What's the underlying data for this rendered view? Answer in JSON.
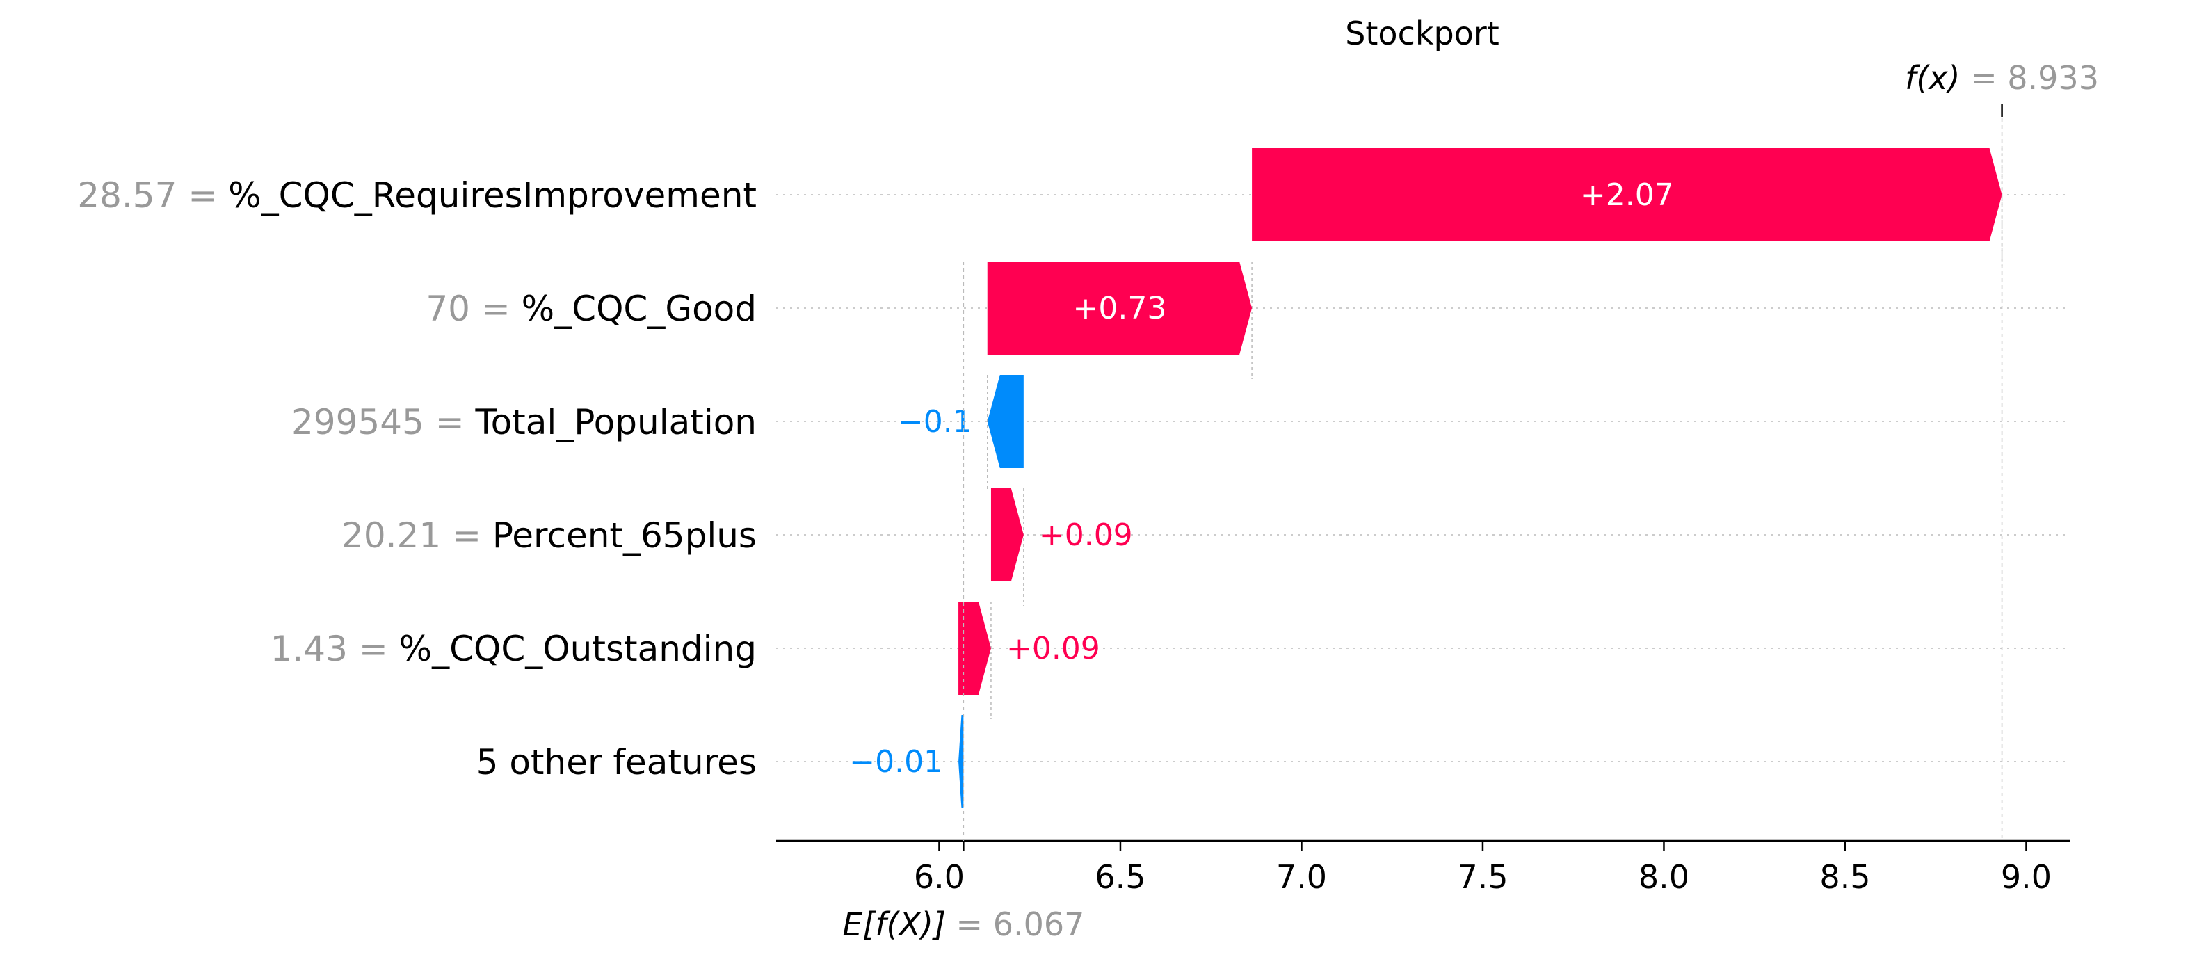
{
  "chart_data": {
    "type": "waterfall",
    "title": "Stockport",
    "f_x": {
      "label": "f(x)",
      "value": "8.933",
      "x": 8.933
    },
    "expected": {
      "label": "E[f(X)]",
      "value": "6.067",
      "x": 6.067
    },
    "xlim": [
      5.55,
      9.12
    ],
    "x_ticks": [
      6.0,
      6.5,
      7.0,
      7.5,
      8.0,
      8.5,
      9.0
    ],
    "x_tick_labels": [
      "6.0",
      "6.5",
      "7.0",
      "7.5",
      "8.0",
      "8.5",
      "9.0"
    ],
    "features": [
      {
        "value_text": "28.57",
        "name": "%_CQC_RequiresImprovement",
        "contribution": 2.07,
        "label": "+2.07",
        "start": 6.863,
        "end": 8.933
      },
      {
        "value_text": "70",
        "name": "%_CQC_Good",
        "contribution": 0.73,
        "label": "+0.73",
        "start": 6.133,
        "end": 6.863
      },
      {
        "value_text": "299545",
        "name": "Total_Population",
        "contribution": -0.1,
        "label": "−0.1",
        "start": 6.233,
        "end": 6.133
      },
      {
        "value_text": "20.21",
        "name": "Percent_65plus",
        "contribution": 0.09,
        "label": "+0.09",
        "start": 6.143,
        "end": 6.233
      },
      {
        "value_text": "1.43",
        "name": "%_CQC_Outstanding",
        "contribution": 0.09,
        "label": "+0.09",
        "start": 6.053,
        "end": 6.143
      },
      {
        "value_text": "",
        "name": "5 other features",
        "contribution": -0.01,
        "label": "−0.01",
        "start": 6.067,
        "end": 6.053
      }
    ],
    "colors": {
      "positive": "#ff0051",
      "negative": "#008bfb",
      "value_text": "#999999",
      "grid": "#cccccc"
    }
  }
}
